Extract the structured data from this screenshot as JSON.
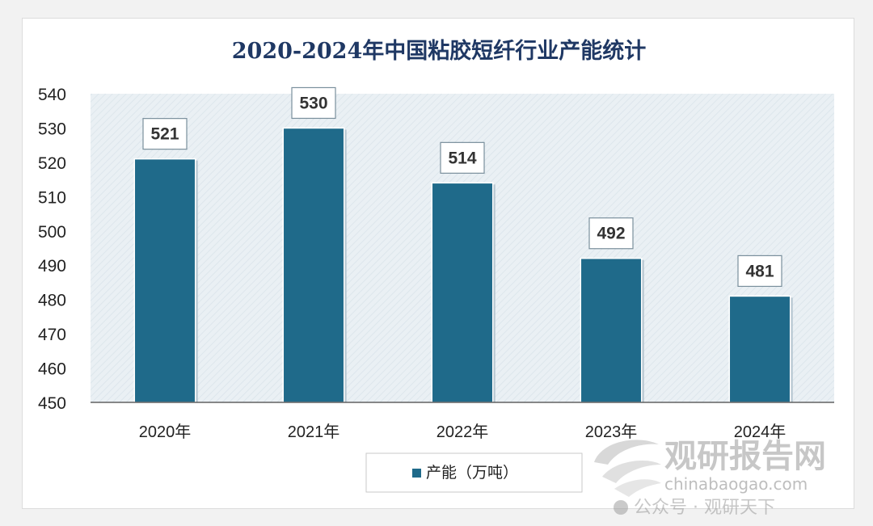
{
  "chart_data": {
    "type": "bar",
    "title": "2020-2024年中国粘胶短纤行业产能统计",
    "categories": [
      "2020年",
      "2021年",
      "2022年",
      "2023年",
      "2024年"
    ],
    "series": [
      {
        "name": "产能（万吨）",
        "values": [
          521,
          530,
          514,
          492,
          481
        ]
      }
    ],
    "ylim": [
      450,
      540
    ],
    "yticks": [
      450,
      460,
      470,
      480,
      490,
      500,
      510,
      520,
      530,
      540
    ],
    "xlabel": "",
    "ylabel": "",
    "grid": false,
    "legend_position": "bottom",
    "colors": {
      "bar": "#1f6a8a",
      "title": "#1f3864",
      "axis_text": "#222222",
      "label_text": "#333333"
    }
  },
  "watermark": {
    "logo_text": "观研报告网",
    "site": "chinabaogao.com",
    "wechat": "公众号 · 观研天下"
  }
}
